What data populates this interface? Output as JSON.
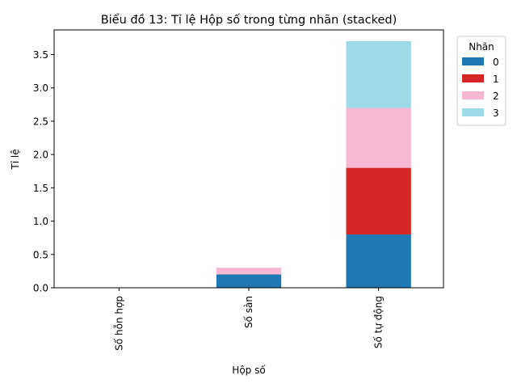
{
  "chart_data": {
    "type": "bar",
    "stacked": true,
    "title": "Biểu đồ 13: Tỉ lệ Hộp số trong từng nhãn (stacked)",
    "xlabel": "Hộp số",
    "ylabel": "Tỉ lệ",
    "categories": [
      "Số hỗn hợp",
      "Số sàn",
      "Số tự động"
    ],
    "ylim": [
      0,
      3.87
    ],
    "yticks": [
      "0.0",
      "0.5",
      "1.0",
      "1.5",
      "2.0",
      "2.5",
      "3.0",
      "3.5"
    ],
    "legend": {
      "title": "Nhãn",
      "placement": "upper-right-outside"
    },
    "series": [
      {
        "name": "0",
        "color": "#1f77b4",
        "values": [
          0.0,
          0.2,
          0.8
        ]
      },
      {
        "name": "1",
        "color": "#d62728",
        "values": [
          0.0,
          0.0,
          1.0
        ]
      },
      {
        "name": "2",
        "color": "#f7b6d2",
        "values": [
          0.0,
          0.1,
          0.9
        ]
      },
      {
        "name": "3",
        "color": "#9edae5",
        "values": [
          0.0,
          0.0,
          1.0
        ]
      }
    ]
  }
}
